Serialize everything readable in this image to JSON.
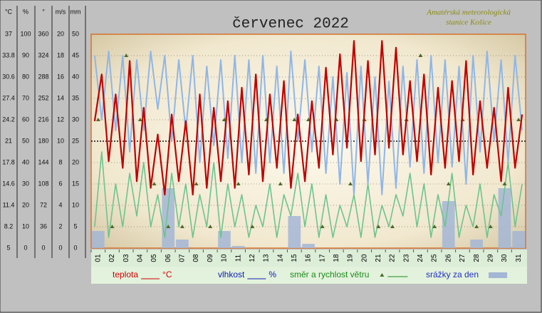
{
  "chart_data": {
    "type": "combo",
    "title": "červenec 2022",
    "subtitle": [
      "Amatérská meteorologická",
      "stanice Košice"
    ],
    "axes": [
      {
        "unit": "°C",
        "lim": [
          5,
          37
        ],
        "ticks": [
          5,
          8.2,
          11.4,
          14.6,
          17.8,
          21,
          24.2,
          27.4,
          30.6,
          33.8,
          37
        ]
      },
      {
        "unit": "%",
        "lim": [
          0,
          100
        ],
        "ticks": [
          0,
          10,
          20,
          30,
          40,
          50,
          60,
          70,
          80,
          90,
          100
        ]
      },
      {
        "unit": "°",
        "lim": [
          0,
          360
        ],
        "ticks": [
          0,
          36,
          72,
          108,
          144,
          180,
          216,
          252,
          288,
          324,
          360
        ]
      },
      {
        "unit": "m/s",
        "lim": [
          0,
          20
        ],
        "ticks": [
          0,
          2,
          4,
          6,
          8,
          10,
          12,
          14,
          16,
          18,
          20
        ]
      },
      {
        "unit": "mm",
        "lim": [
          0,
          50
        ],
        "ticks": [
          0,
          5,
          10,
          15,
          20,
          25,
          30,
          35,
          40,
          45,
          50
        ]
      }
    ],
    "reference_line": 25,
    "xlim": [
      0,
      31
    ],
    "categories": [
      "01",
      "02",
      "03",
      "04",
      "05",
      "06",
      "07",
      "08",
      "09",
      "10",
      "11",
      "12",
      "13",
      "14",
      "15",
      "16",
      "17",
      "18",
      "19",
      "20",
      "21",
      "22",
      "23",
      "24",
      "25",
      "26",
      "27",
      "28",
      "29",
      "30",
      "31"
    ],
    "x": [
      0.25,
      0.75,
      1.25,
      1.75,
      2.25,
      2.75,
      3.25,
      3.75,
      4.25,
      4.75,
      5.25,
      5.75,
      6.25,
      6.75,
      7.25,
      7.75,
      8.25,
      8.75,
      9.25,
      9.75,
      10.25,
      10.75,
      11.25,
      11.75,
      12.25,
      12.75,
      13.25,
      13.75,
      14.25,
      14.75,
      15.25,
      15.75,
      16.25,
      16.75,
      17.25,
      17.75,
      18.25,
      18.75,
      19.25,
      19.75,
      20.25,
      20.75,
      21.25,
      21.75,
      22.25,
      22.75,
      23.25,
      23.75,
      24.25,
      24.75,
      25.25,
      25.75,
      26.25,
      26.75,
      27.25,
      27.75,
      28.25,
      28.75,
      29.25,
      29.75,
      30.25,
      30.75
    ],
    "series": [
      {
        "name": "srážky za den",
        "type": "bar",
        "color": "#a3b6d6",
        "axis": 4,
        "values": [
          4,
          0,
          0,
          0,
          0,
          14,
          2,
          0,
          0,
          4,
          0.5,
          0,
          0,
          0,
          7.5,
          1,
          0,
          0,
          0,
          0,
          0,
          0,
          0,
          0,
          0,
          11,
          0,
          2,
          0,
          14,
          4
        ]
      },
      {
        "name": "vlhkost",
        "type": "line",
        "color": "#8fb6e8",
        "axis": 1,
        "values": [
          90,
          60,
          92,
          55,
          90,
          45,
          88,
          55,
          92,
          65,
          90,
          50,
          88,
          55,
          90,
          40,
          85,
          48,
          88,
          42,
          90,
          40,
          88,
          35,
          90,
          40,
          85,
          35,
          92,
          50,
          88,
          45,
          85,
          35,
          80,
          30,
          82,
          25,
          85,
          30,
          80,
          25,
          78,
          28,
          85,
          38,
          88,
          35,
          90,
          40,
          88,
          38,
          85,
          30,
          90,
          45,
          92,
          50,
          88,
          40,
          90,
          55
        ]
      },
      {
        "name": "směr a rychlost větru",
        "type": "wind",
        "color": "#6cc48e",
        "marker_color": "#4f6a2a",
        "axis": 3,
        "direction_axis": 2,
        "values": [
          2,
          9,
          1,
          6,
          2,
          7,
          3,
          8,
          2,
          5,
          1,
          7,
          2,
          6,
          1,
          5,
          2,
          8,
          1,
          6,
          2,
          5,
          1,
          4,
          2,
          6,
          1,
          5,
          3,
          7,
          2,
          6,
          1,
          5,
          1,
          4,
          2,
          5,
          1,
          6,
          1,
          4,
          2,
          5,
          3,
          7,
          2,
          6,
          1,
          5,
          2,
          7,
          1,
          4,
          2,
          6,
          1,
          5,
          3,
          8,
          2,
          6
        ],
        "directions": [
          216,
          36,
          324,
          216,
          108,
          36,
          36,
          108,
          36,
          216,
          108,
          36,
          216,
          108,
          216,
          216,
          36,
          216,
          108,
          216,
          36,
          36,
          216,
          324,
          36,
          108,
          216,
          36,
          36,
          108,
          216
        ]
      },
      {
        "name": "teplota",
        "type": "line",
        "color": "#c00000",
        "axis": 0,
        "values": [
          24,
          31,
          18,
          28,
          17,
          33,
          15,
          26,
          14,
          22,
          13,
          25,
          15,
          24,
          13,
          28,
          14,
          26,
          15,
          27,
          14,
          29,
          16,
          31,
          15,
          28,
          17,
          30,
          14,
          25,
          15,
          27,
          17,
          32,
          19,
          34,
          20,
          36,
          18,
          33,
          19,
          36,
          20,
          35,
          19,
          30,
          18,
          31,
          16,
          29,
          17,
          30,
          18,
          33,
          16,
          27,
          17,
          26,
          15,
          29,
          17,
          25
        ]
      }
    ]
  }
}
